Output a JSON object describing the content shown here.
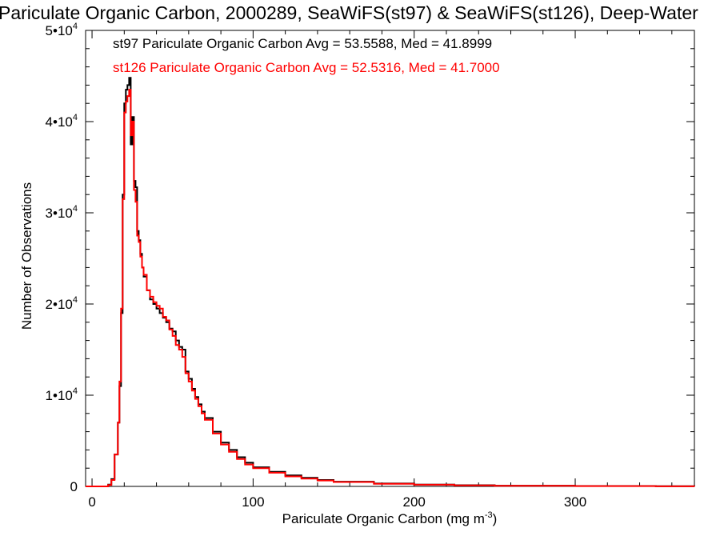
{
  "chart_data": {
    "type": "line",
    "title": "Pariculate Organic Carbon, 2000289, SeaWiFS(st97) & SeaWiFS(st126), Deep-Water",
    "xlabel": "Pariculate Organic Carbon (mg m",
    "xlabel_sup": "-3",
    "xlabel_close": ")",
    "ylabel": "Number of Observations",
    "xlim": [
      -4,
      374
    ],
    "ylim": [
      0,
      50000
    ],
    "x_ticks": [
      0,
      100,
      200,
      300
    ],
    "y_ticks": [
      {
        "value": 0,
        "label": "0",
        "sup": ""
      },
      {
        "value": 10000,
        "label": "1•10",
        "sup": "4"
      },
      {
        "value": 20000,
        "label": "2•10",
        "sup": "4"
      },
      {
        "value": 30000,
        "label": "3•10",
        "sup": "4"
      },
      {
        "value": 40000,
        "label": "4•10",
        "sup": "4"
      },
      {
        "value": 50000,
        "label": "5•10",
        "sup": "4"
      }
    ],
    "grid": false,
    "x": [
      -4,
      10,
      12,
      14,
      16,
      17,
      18,
      19,
      20,
      21,
      22,
      23,
      24,
      25,
      26,
      27,
      28,
      29,
      30,
      31,
      32,
      34,
      36,
      38,
      40,
      42,
      44,
      46,
      48,
      50,
      52,
      54,
      56,
      58,
      60,
      62,
      64,
      66,
      68,
      70,
      75,
      80,
      85,
      90,
      95,
      100,
      110,
      120,
      130,
      140,
      150,
      175,
      200,
      225,
      250,
      300,
      350,
      374
    ],
    "series": [
      {
        "name": "st97",
        "color": "#000000",
        "legend": "st97 Pariculate Organic Carbon Avg = 53.5588, Med = 41.8999",
        "values": [
          0,
          200,
          800,
          3500,
          7000,
          11000,
          19000,
          32000,
          42000,
          43500,
          44000,
          44800,
          37500,
          40500,
          33500,
          32800,
          28000,
          27000,
          25500,
          24000,
          23000,
          21500,
          20500,
          20000,
          19500,
          19000,
          18500,
          18000,
          17300,
          17000,
          16000,
          15300,
          15000,
          12600,
          11800,
          10700,
          9800,
          9000,
          8200,
          7500,
          6000,
          4800,
          4000,
          3200,
          2600,
          2100,
          1600,
          1200,
          950,
          700,
          520,
          320,
          200,
          130,
          80,
          40,
          15,
          0
        ]
      },
      {
        "name": "st126",
        "color": "#ff0000",
        "legend": "st126 Pariculate Organic Carbon Avg = 52.5316, Med = 41.7000",
        "values": [
          0,
          150,
          700,
          3500,
          7000,
          11500,
          19500,
          31500,
          41000,
          42200,
          42800,
          43500,
          38500,
          40000,
          32500,
          31200,
          27500,
          26800,
          25200,
          24000,
          23200,
          21500,
          20800,
          20200,
          19800,
          19500,
          18600,
          18200,
          17200,
          16500,
          15500,
          15000,
          14200,
          12400,
          11500,
          10500,
          9600,
          8800,
          8000,
          7300,
          5800,
          4600,
          3800,
          3000,
          2400,
          2000,
          1500,
          1100,
          850,
          650,
          480,
          290,
          180,
          110,
          70,
          35,
          12,
          0
        ]
      }
    ]
  }
}
